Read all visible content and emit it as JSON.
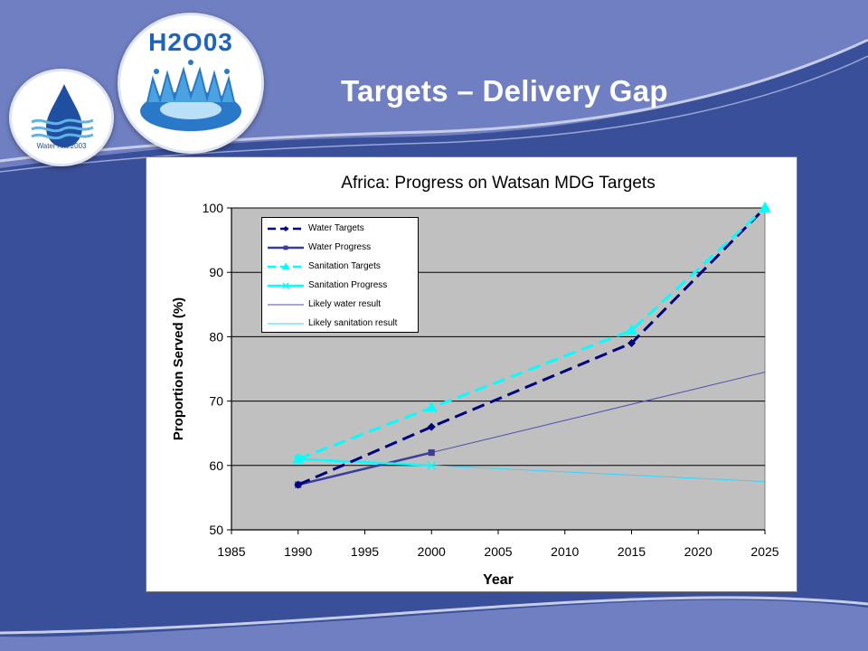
{
  "slide": {
    "title": "Targets – Delivery Gap",
    "logos": [
      {
        "name": "water-year-logo",
        "text": "WaterYear2003"
      },
      {
        "name": "h2o3-logo",
        "text": "H2O03"
      }
    ]
  },
  "colors": {
    "slide_background": "#3a4f9a",
    "title": "#ffffff",
    "plot_area": "#c0c0c0",
    "water": "#000080",
    "water_progress": "#3c3c9c",
    "sanitation": "#00ffff",
    "likely_water": "#4b4bb0",
    "likely_sanitation": "#33d6ff"
  },
  "chart_data": {
    "type": "line",
    "title": "Africa: Progress on Watsan MDG Targets",
    "xlabel": "Year",
    "ylabel": "Proportion Served (%)",
    "xlim": [
      1985,
      2025
    ],
    "ylim": [
      50,
      100
    ],
    "xticks": [
      1985,
      1990,
      1995,
      2000,
      2005,
      2010,
      2015,
      2020,
      2025
    ],
    "yticks": [
      50,
      60,
      70,
      80,
      90,
      100
    ],
    "grid": "horizontal",
    "legend_position": "top-left",
    "series": [
      {
        "name": "Water Targets",
        "color": "#000080",
        "dash": "dashed",
        "marker": "diamond",
        "width": 3,
        "points": [
          [
            1990,
            57
          ],
          [
            2000,
            66
          ],
          [
            2015,
            79
          ],
          [
            2025,
            100
          ]
        ]
      },
      {
        "name": "Water Progress",
        "color": "#3c3c9c",
        "dash": "solid",
        "marker": "square",
        "width": 2.5,
        "points": [
          [
            1990,
            57
          ],
          [
            2000,
            62
          ]
        ]
      },
      {
        "name": "Sanitation Targets",
        "color": "#00ffff",
        "dash": "dashed",
        "marker": "triangle",
        "width": 3,
        "points": [
          [
            1990,
            61
          ],
          [
            2000,
            69
          ],
          [
            2015,
            81
          ],
          [
            2025,
            100
          ]
        ]
      },
      {
        "name": "Sanitation Progress",
        "color": "#00ffff",
        "dash": "solid",
        "marker": "x",
        "width": 2.5,
        "points": [
          [
            1990,
            61
          ],
          [
            2000,
            60
          ]
        ]
      },
      {
        "name": "Likely water result",
        "color": "#4b4bb0",
        "dash": "solid",
        "marker": "none",
        "width": 1,
        "points": [
          [
            2000,
            62
          ],
          [
            2015,
            69.5
          ],
          [
            2025,
            74.5
          ]
        ]
      },
      {
        "name": "Likely sanitation result",
        "color": "#33d6ff",
        "dash": "solid",
        "marker": "none",
        "width": 1,
        "points": [
          [
            2000,
            60
          ],
          [
            2025,
            57.5
          ]
        ]
      }
    ]
  }
}
